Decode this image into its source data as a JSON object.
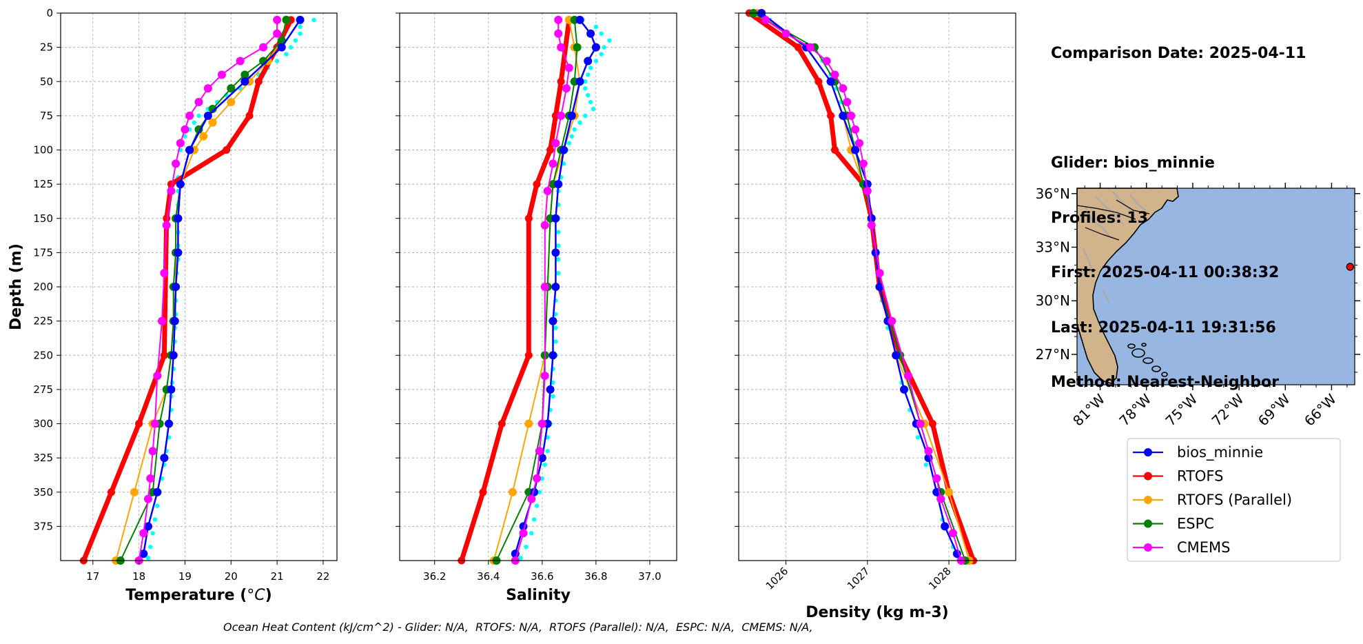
{
  "info": {
    "comparison_date": "Comparison Date: 2025-04-11",
    "glider": "Glider: bios_minnie",
    "profiles": "Profiles: 13",
    "first": "First: 2025-04-11 00:38:32",
    "last": "Last: 2025-04-11 19:31:56",
    "method": "Method: Nearest-Neighbor"
  },
  "ohc_text": "Ocean Heat Content (kJ/cm^2) - Glider: N/A,  RTOFS: N/A,  RTOFS (Parallel): N/A,  ESPC: N/A,  CMEMS: N/A,",
  "colors": {
    "glider": "#0000ff",
    "glider_scatter": "#00ffff",
    "rtofs": "#ff0000",
    "rtofs_parallel": "#ffa500",
    "espc": "#008000",
    "cmems": "#ff00ff",
    "grid": "#b0b0b0",
    "land": "#d2b48c",
    "ocean": "#97b6e1",
    "rivers": "#aaaaaa"
  },
  "legend": [
    "bios_minnie",
    "RTOFS",
    "RTOFS (Parallel)",
    "ESPC",
    "CMEMS"
  ],
  "chart_data": [
    {
      "type": "line",
      "ylabel": "Depth (m)",
      "xlabel": "Temperature (°C)",
      "xlabel_main": "Temperature (",
      "xlabel_unit": "°C",
      "xlabel_close": ")",
      "xlim": [
        16.3,
        22.3
      ],
      "ylim": [
        400,
        0
      ],
      "xticks": [
        17,
        18,
        19,
        20,
        21,
        22
      ],
      "xtick_labels": [
        "17",
        "18",
        "19",
        "20",
        "21",
        "22"
      ],
      "yticks": [
        0,
        25,
        50,
        75,
        100,
        125,
        150,
        175,
        200,
        225,
        250,
        275,
        300,
        325,
        350,
        375
      ],
      "ytick_labels": [
        "0",
        "25",
        "50",
        "75",
        "100",
        "125",
        "150",
        "175",
        "200",
        "225",
        "250",
        "275",
        "300",
        "325",
        "350",
        "375"
      ],
      "grid": true,
      "series": [
        {
          "name": "bios_minnie",
          "depth": [
            5,
            25,
            50,
            75,
            100,
            125,
            150,
            175,
            200,
            225,
            250,
            275,
            300,
            325,
            350,
            375,
            395
          ],
          "values": [
            21.5,
            21.1,
            20.3,
            19.5,
            19.1,
            18.9,
            18.85,
            18.85,
            18.8,
            18.78,
            18.75,
            18.7,
            18.65,
            18.55,
            18.4,
            18.2,
            18.1
          ]
        },
        {
          "name": "RTOFS",
          "depth": [
            5,
            25,
            50,
            75,
            100,
            125,
            150,
            250,
            300,
            350,
            400
          ],
          "values": [
            21.3,
            21.0,
            20.6,
            20.4,
            19.9,
            18.7,
            18.6,
            18.55,
            18.0,
            17.4,
            16.8
          ]
        },
        {
          "name": "RTOFS (Parallel)",
          "depth": [
            5,
            20,
            35,
            50,
            65,
            80,
            90,
            100,
            125,
            150,
            175,
            200,
            225,
            250,
            275,
            300,
            350,
            400
          ],
          "values": [
            21.2,
            21.1,
            20.8,
            20.4,
            20.0,
            19.6,
            19.4,
            19.2,
            18.9,
            18.8,
            18.8,
            18.8,
            18.75,
            18.7,
            18.6,
            18.3,
            17.9,
            17.5
          ]
        },
        {
          "name": "ESPC",
          "depth": [
            5,
            20,
            35,
            45,
            55,
            70,
            85,
            100,
            125,
            150,
            175,
            200,
            225,
            250,
            275,
            300,
            350,
            400
          ],
          "values": [
            21.2,
            21.1,
            20.7,
            20.3,
            20.0,
            19.6,
            19.3,
            19.1,
            18.9,
            18.8,
            18.8,
            18.75,
            18.75,
            18.7,
            18.6,
            18.45,
            18.3,
            17.6
          ]
        },
        {
          "name": "CMEMS",
          "depth": [
            5,
            15,
            25,
            35,
            45,
            55,
            65,
            75,
            85,
            95,
            110,
            130,
            155,
            190,
            225,
            265,
            300,
            320,
            340,
            355,
            380,
            400
          ],
          "values": [
            21.0,
            21.0,
            20.7,
            20.2,
            19.8,
            19.5,
            19.3,
            19.1,
            19.0,
            18.9,
            18.8,
            18.7,
            18.6,
            18.55,
            18.5,
            18.4,
            18.35,
            18.3,
            18.25,
            18.2,
            18.1,
            18.0
          ]
        }
      ],
      "scatter_values": [
        [
          5,
          21.8
        ],
        [
          10,
          21.5
        ],
        [
          15,
          21.5
        ],
        [
          20,
          21.4
        ],
        [
          25,
          21.3
        ],
        [
          30,
          21.2
        ],
        [
          35,
          21.0
        ],
        [
          40,
          20.8
        ],
        [
          45,
          20.6
        ],
        [
          50,
          20.4
        ],
        [
          55,
          20.2
        ],
        [
          60,
          19.9
        ],
        [
          65,
          19.7
        ],
        [
          70,
          19.5
        ],
        [
          75,
          19.3
        ],
        [
          80,
          19.2
        ],
        [
          85,
          19.1
        ],
        [
          90,
          19.0
        ],
        [
          95,
          18.9
        ],
        [
          100,
          18.9
        ],
        [
          110,
          18.85
        ],
        [
          120,
          18.85
        ],
        [
          130,
          18.85
        ],
        [
          140,
          18.85
        ],
        [
          150,
          18.85
        ],
        [
          160,
          18.85
        ],
        [
          170,
          18.85
        ],
        [
          180,
          18.85
        ],
        [
          190,
          18.82
        ],
        [
          200,
          18.8
        ],
        [
          210,
          18.8
        ],
        [
          220,
          18.8
        ],
        [
          230,
          18.78
        ],
        [
          240,
          18.78
        ],
        [
          250,
          18.75
        ],
        [
          260,
          18.75
        ],
        [
          270,
          18.72
        ],
        [
          280,
          18.7
        ],
        [
          290,
          18.7
        ],
        [
          300,
          18.68
        ],
        [
          310,
          18.65
        ],
        [
          320,
          18.6
        ],
        [
          330,
          18.55
        ],
        [
          340,
          18.5
        ],
        [
          350,
          18.45
        ],
        [
          360,
          18.4
        ],
        [
          370,
          18.35
        ],
        [
          380,
          18.3
        ],
        [
          390,
          18.25
        ],
        [
          398,
          18.2
        ]
      ]
    },
    {
      "type": "line",
      "xlabel": "Salinity",
      "xlim": [
        36.07,
        37.1
      ],
      "ylim": [
        400,
        0
      ],
      "xticks": [
        36.2,
        36.4,
        36.6,
        36.8,
        37.0
      ],
      "xtick_labels": [
        "36.2",
        "36.4",
        "36.6",
        "36.8",
        "37.0"
      ],
      "grid": true,
      "series": [
        {
          "name": "bios_minnie",
          "depth": [
            5,
            15,
            25,
            35,
            50,
            75,
            100,
            125,
            150,
            175,
            200,
            225,
            250,
            275,
            300,
            325,
            350,
            375,
            395
          ],
          "values": [
            36.74,
            36.78,
            36.8,
            36.77,
            36.74,
            36.71,
            36.68,
            36.66,
            36.65,
            36.65,
            36.65,
            36.64,
            36.64,
            36.63,
            36.62,
            36.6,
            36.57,
            36.53,
            36.5
          ]
        },
        {
          "name": "RTOFS",
          "depth": [
            5,
            50,
            75,
            100,
            125,
            150,
            250,
            300,
            350,
            400
          ],
          "values": [
            36.7,
            36.67,
            36.65,
            36.63,
            36.58,
            36.55,
            36.55,
            36.45,
            36.38,
            36.3
          ]
        },
        {
          "name": "RTOFS (Parallel)",
          "depth": [
            5,
            25,
            50,
            75,
            100,
            125,
            150,
            200,
            250,
            300,
            350,
            400
          ],
          "values": [
            36.7,
            36.72,
            36.74,
            36.72,
            36.68,
            36.64,
            36.63,
            36.62,
            36.61,
            36.55,
            36.49,
            36.42
          ]
        },
        {
          "name": "ESPC",
          "depth": [
            5,
            25,
            50,
            75,
            100,
            125,
            150,
            200,
            250,
            300,
            350,
            400
          ],
          "values": [
            36.72,
            36.73,
            36.72,
            36.7,
            36.67,
            36.64,
            36.63,
            36.62,
            36.61,
            36.6,
            36.55,
            36.43
          ]
        },
        {
          "name": "CMEMS",
          "depth": [
            5,
            15,
            25,
            40,
            55,
            75,
            95,
            110,
            130,
            155,
            200,
            265,
            300,
            320,
            340,
            355,
            380,
            400
          ],
          "values": [
            36.66,
            36.66,
            36.67,
            36.7,
            36.69,
            36.67,
            36.65,
            36.64,
            36.62,
            36.61,
            36.61,
            36.61,
            36.6,
            36.59,
            36.58,
            36.56,
            36.53,
            36.5
          ]
        }
      ],
      "scatter_values": [
        [
          5,
          36.75
        ],
        [
          10,
          36.8
        ],
        [
          15,
          36.82
        ],
        [
          20,
          36.85
        ],
        [
          25,
          36.83
        ],
        [
          30,
          36.82
        ],
        [
          35,
          36.8
        ],
        [
          40,
          36.78
        ],
        [
          45,
          36.77
        ],
        [
          50,
          36.76
        ],
        [
          55,
          36.76
        ],
        [
          60,
          36.77
        ],
        [
          65,
          36.78
        ],
        [
          70,
          36.79
        ],
        [
          75,
          36.76
        ],
        [
          80,
          36.74
        ],
        [
          85,
          36.72
        ],
        [
          90,
          36.71
        ],
        [
          95,
          36.7
        ],
        [
          100,
          36.69
        ],
        [
          110,
          36.68
        ],
        [
          120,
          36.67
        ],
        [
          130,
          36.66
        ],
        [
          140,
          36.66
        ],
        [
          150,
          36.66
        ],
        [
          160,
          36.66
        ],
        [
          170,
          36.66
        ],
        [
          180,
          36.66
        ],
        [
          190,
          36.66
        ],
        [
          200,
          36.65
        ],
        [
          210,
          36.65
        ],
        [
          220,
          36.65
        ],
        [
          230,
          36.65
        ],
        [
          240,
          36.65
        ],
        [
          250,
          36.65
        ],
        [
          260,
          36.64
        ],
        [
          270,
          36.64
        ],
        [
          280,
          36.64
        ],
        [
          290,
          36.63
        ],
        [
          300,
          36.63
        ],
        [
          310,
          36.62
        ],
        [
          320,
          36.62
        ],
        [
          330,
          36.61
        ],
        [
          340,
          36.6
        ],
        [
          350,
          36.59
        ],
        [
          360,
          36.58
        ],
        [
          370,
          36.57
        ],
        [
          380,
          36.56
        ],
        [
          390,
          36.54
        ],
        [
          398,
          36.52
        ]
      ]
    },
    {
      "type": "line",
      "xlabel": "Density (kg m-3)",
      "xlim": [
        1025.42,
        1028.82
      ],
      "ylim": [
        400,
        0
      ],
      "xticks": [
        1026,
        1027,
        1028
      ],
      "xtick_labels": [
        "1026",
        "1027",
        "1028"
      ],
      "grid": true,
      "series": [
        {
          "name": "bios_minnie",
          "depth": [
            0,
            25,
            50,
            75,
            100,
            125,
            150,
            175,
            200,
            225,
            250,
            275,
            300,
            325,
            350,
            375,
            395
          ],
          "values": [
            1025.7,
            1026.25,
            1026.55,
            1026.7,
            1026.85,
            1027.0,
            1027.05,
            1027.1,
            1027.15,
            1027.25,
            1027.35,
            1027.45,
            1027.6,
            1027.75,
            1027.85,
            1027.95,
            1028.1
          ]
        },
        {
          "name": "RTOFS",
          "depth": [
            0,
            25,
            50,
            75,
            100,
            125,
            150,
            200,
            250,
            300,
            350,
            400
          ],
          "values": [
            1025.55,
            1026.15,
            1026.4,
            1026.55,
            1026.6,
            1026.95,
            1027.05,
            1027.15,
            1027.4,
            1027.8,
            1028.0,
            1028.3
          ]
        },
        {
          "name": "RTOFS (Parallel)",
          "depth": [
            0,
            25,
            50,
            75,
            100,
            125,
            150,
            200,
            250,
            300,
            350,
            400
          ],
          "values": [
            1025.65,
            1026.25,
            1026.55,
            1026.7,
            1026.8,
            1026.95,
            1027.05,
            1027.15,
            1027.35,
            1027.7,
            1028.0,
            1028.25
          ]
        },
        {
          "name": "ESPC",
          "depth": [
            0,
            25,
            50,
            75,
            100,
            125,
            150,
            200,
            250,
            300,
            350,
            400
          ],
          "values": [
            1025.6,
            1026.35,
            1026.6,
            1026.75,
            1026.85,
            1026.95,
            1027.05,
            1027.15,
            1027.4,
            1027.65,
            1027.9,
            1028.2
          ]
        },
        {
          "name": "CMEMS",
          "depth": [
            5,
            15,
            25,
            35,
            45,
            55,
            65,
            75,
            85,
            95,
            110,
            130,
            155,
            190,
            225,
            265,
            300,
            320,
            340,
            355,
            380,
            400
          ],
          "values": [
            1025.75,
            1026.0,
            1026.3,
            1026.5,
            1026.6,
            1026.7,
            1026.75,
            1026.8,
            1026.85,
            1026.9,
            1026.95,
            1027.0,
            1027.05,
            1027.15,
            1027.3,
            1027.5,
            1027.65,
            1027.75,
            1027.85,
            1027.9,
            1028.05,
            1028.15
          ]
        }
      ],
      "scatter_values": [
        [
          5,
          1025.8
        ],
        [
          15,
          1026.0
        ],
        [
          25,
          1026.25
        ],
        [
          35,
          1026.45
        ],
        [
          45,
          1026.55
        ],
        [
          55,
          1026.62
        ],
        [
          65,
          1026.68
        ],
        [
          75,
          1026.72
        ],
        [
          85,
          1026.78
        ],
        [
          95,
          1026.84
        ],
        [
          110,
          1026.92
        ],
        [
          130,
          1027.0
        ],
        [
          150,
          1027.05
        ],
        [
          170,
          1027.08
        ],
        [
          190,
          1027.12
        ],
        [
          210,
          1027.18
        ],
        [
          230,
          1027.25
        ],
        [
          250,
          1027.33
        ],
        [
          270,
          1027.42
        ],
        [
          290,
          1027.52
        ],
        [
          310,
          1027.62
        ],
        [
          330,
          1027.72
        ],
        [
          350,
          1027.82
        ],
        [
          370,
          1027.92
        ],
        [
          390,
          1028.05
        ],
        [
          398,
          1028.12
        ]
      ]
    },
    {
      "type": "map",
      "lat_labels": [
        "36°N",
        "33°N",
        "30°N",
        "27°N"
      ],
      "lat_values": [
        36,
        33,
        30,
        27
      ],
      "lon_labels": [
        "81°W",
        "78°W",
        "75°W",
        "72°W",
        "69°W",
        "66°W"
      ],
      "lon_values": [
        -81,
        -78,
        -75,
        -72,
        -69,
        -66
      ],
      "lon_range": [
        -82.5,
        -64.5
      ],
      "lat_range": [
        25.3,
        36.3
      ],
      "glider_position": {
        "lon": -64.8,
        "lat": 31.9
      }
    }
  ]
}
